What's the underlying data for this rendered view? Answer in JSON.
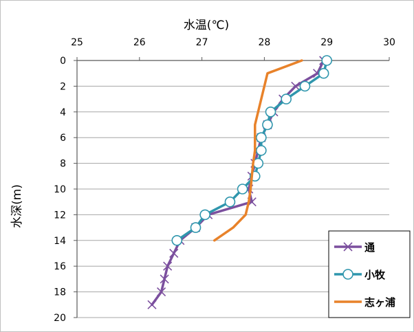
{
  "chart_data": {
    "type": "line",
    "title": "",
    "xlabel": "水温(℃)",
    "ylabel": "水深(m)",
    "x_axis_position": "top",
    "y_axis_inverted": true,
    "xlim": [
      25,
      30
    ],
    "ylim": [
      0,
      20
    ],
    "x_ticks": [
      "25",
      "26",
      "27",
      "28",
      "29",
      "30"
    ],
    "y_ticks": [
      "0",
      "2",
      "4",
      "6",
      "8",
      "10",
      "12",
      "14",
      "16",
      "18",
      "20"
    ],
    "grid": "horizontal",
    "legend_position": "bottom-right",
    "series": [
      {
        "name": "通",
        "color": "#7b4f9e",
        "marker": "x",
        "points": [
          [
            28.95,
            0
          ],
          [
            28.85,
            1
          ],
          [
            28.5,
            2
          ],
          [
            28.3,
            3
          ],
          [
            28.15,
            4
          ],
          [
            28.05,
            5
          ],
          [
            27.95,
            6
          ],
          [
            27.9,
            7
          ],
          [
            27.85,
            8
          ],
          [
            27.8,
            9
          ],
          [
            27.75,
            10
          ],
          [
            27.8,
            11
          ],
          [
            27.1,
            12
          ],
          [
            26.9,
            13
          ],
          [
            26.65,
            14
          ],
          [
            26.55,
            15
          ],
          [
            26.45,
            16
          ],
          [
            26.4,
            17
          ],
          [
            26.35,
            18
          ],
          [
            26.2,
            19
          ]
        ]
      },
      {
        "name": "小牧",
        "color": "#2f96ad",
        "marker": "circle",
        "points": [
          [
            29.0,
            0
          ],
          [
            28.95,
            1
          ],
          [
            28.65,
            2
          ],
          [
            28.35,
            3
          ],
          [
            28.1,
            4
          ],
          [
            28.05,
            5
          ],
          [
            27.95,
            6
          ],
          [
            27.95,
            7
          ],
          [
            27.9,
            8
          ],
          [
            27.85,
            9
          ],
          [
            27.65,
            10
          ],
          [
            27.45,
            11
          ],
          [
            27.05,
            12
          ],
          [
            26.9,
            13
          ],
          [
            26.6,
            14
          ]
        ]
      },
      {
        "name": "志ヶ浦",
        "color": "#e8822a",
        "marker": "none",
        "points": [
          [
            28.6,
            0
          ],
          [
            28.05,
            1
          ],
          [
            28.0,
            2
          ],
          [
            27.95,
            3
          ],
          [
            27.9,
            4
          ],
          [
            27.85,
            5
          ],
          [
            27.85,
            6
          ],
          [
            27.85,
            7
          ],
          [
            27.82,
            8
          ],
          [
            27.8,
            9
          ],
          [
            27.78,
            10
          ],
          [
            27.75,
            11
          ],
          [
            27.7,
            12
          ],
          [
            27.5,
            13
          ],
          [
            27.2,
            14
          ]
        ]
      }
    ]
  }
}
